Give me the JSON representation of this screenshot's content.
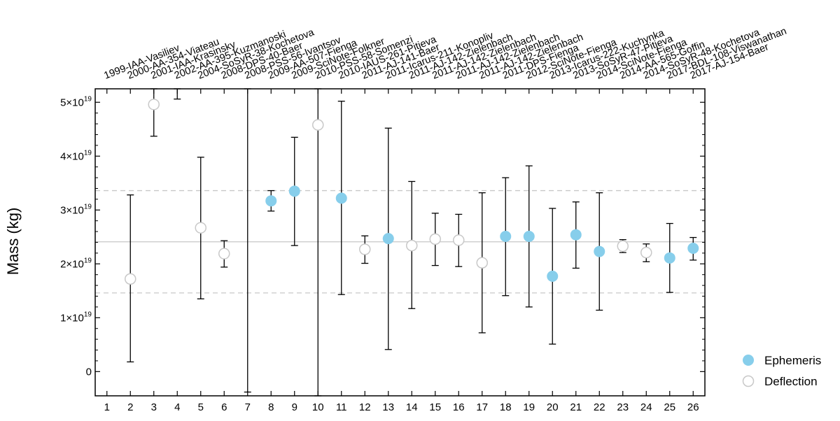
{
  "chart_data": {
    "type": "scatter",
    "ylabel": "Mass (kg)",
    "x": [
      1,
      2,
      3,
      4,
      5,
      6,
      7,
      8,
      9,
      10,
      11,
      12,
      13,
      14,
      15,
      16,
      17,
      18,
      19,
      20,
      21,
      22,
      23,
      24,
      25,
      26
    ],
    "xlim": [
      0.5,
      26.5
    ],
    "ylim": [
      -0.45,
      5.25
    ],
    "y_scale_unit": "1e19",
    "y_ticks": [
      {
        "value": 0,
        "mantissa": "0",
        "exp": ""
      },
      {
        "value": 1,
        "mantissa": "1×10",
        "exp": "19"
      },
      {
        "value": 2,
        "mantissa": "2×10",
        "exp": "19"
      },
      {
        "value": 3,
        "mantissa": "3×10",
        "exp": "19"
      },
      {
        "value": 4,
        "mantissa": "4×10",
        "exp": "19"
      },
      {
        "value": 5,
        "mantissa": "5×10",
        "exp": "19"
      }
    ],
    "x_tick_labels": [
      "1",
      "2",
      "3",
      "4",
      "5",
      "6",
      "7",
      "8",
      "9",
      "10",
      "11",
      "12",
      "13",
      "14",
      "15",
      "16",
      "17",
      "18",
      "19",
      "20",
      "21",
      "22",
      "23",
      "24",
      "25",
      "26"
    ],
    "top_labels": [
      "1999-IAA-Vasiliev",
      "2000-AA-354-Viateau",
      "2001-IAA-Krasinsky",
      "2002-AA-395-Kuzmanoski",
      "2004-SoSyR-38-Kochetova",
      "2008-DPS-40-Baer",
      "2008-PSS-56-Ivantsov",
      "2009-AA-507-Fienga",
      "2009-SciNote-Folkner",
      "2010-PSS-58-Somenzi",
      "2010-IAUS-261-Pitjeva",
      "2011-AJ-141-Baer",
      "2011-Icarus-211-Konopliv",
      "2011-AJ-142-Zielenbach",
      "2011-AJ-142-Zielenbach",
      "2011-AJ-142-Zielenbach",
      "2011-AJ-142-Zielenbach",
      "2011-DPS-Fienga",
      "2012-SciNote-Fienga",
      "2013-Icarus-222-Kuchynka",
      "2013-SoSyR-47-Pitjeva",
      "2014-SciNote-Fienga",
      "2014-AA-565-Goffin",
      "2014-SoSyR-48-Kochetova",
      "2017-BDL-108-Viswanathan",
      "2017-AJ-154-Baer"
    ],
    "series": [
      {
        "name": "Ephemeris",
        "color": "#87ceeb",
        "marker": "filled-circle",
        "points": [
          {
            "x": 8,
            "y": 3.17,
            "lo": 2.98,
            "hi": 3.36
          },
          {
            "x": 9,
            "y": 3.35,
            "lo": 2.34,
            "hi": 4.35
          },
          {
            "x": 11,
            "y": 3.22,
            "lo": 1.43,
            "hi": 5.02
          },
          {
            "x": 13,
            "y": 2.47,
            "lo": 0.41,
            "hi": 4.52
          },
          {
            "x": 18,
            "y": 2.51,
            "lo": 1.41,
            "hi": 3.6
          },
          {
            "x": 19,
            "y": 2.51,
            "lo": 1.2,
            "hi": 3.82
          },
          {
            "x": 20,
            "y": 1.77,
            "lo": 0.51,
            "hi": 3.03
          },
          {
            "x": 21,
            "y": 2.54,
            "lo": 1.92,
            "hi": 3.15
          },
          {
            "x": 22,
            "y": 2.23,
            "lo": 1.14,
            "hi": 3.32
          },
          {
            "x": 25,
            "y": 2.11,
            "lo": 1.47,
            "hi": 2.75
          },
          {
            "x": 26,
            "y": 2.29,
            "lo": 2.07,
            "hi": 2.49
          }
        ]
      },
      {
        "name": "Deflection",
        "color": "#c8c8c8",
        "marker": "open-circle",
        "points": [
          {
            "x": 2,
            "y": 1.72,
            "lo": 0.18,
            "hi": 3.28
          },
          {
            "x": 3,
            "y": 4.96,
            "lo": 4.37,
            "hi": 5.25
          },
          {
            "x": 4,
            "y": null,
            "lo": 5.06,
            "hi": 5.25
          },
          {
            "x": 5,
            "y": 2.67,
            "lo": 1.35,
            "hi": 3.98
          },
          {
            "x": 6,
            "y": 2.19,
            "lo": 1.94,
            "hi": 2.43
          },
          {
            "x": 7,
            "y": null,
            "lo": -0.38,
            "hi": 5.25
          },
          {
            "x": 10,
            "y": 4.58,
            "lo": -0.45,
            "hi": 5.25
          },
          {
            "x": 12,
            "y": 2.27,
            "lo": 2.01,
            "hi": 2.52
          },
          {
            "x": 14,
            "y": 2.34,
            "lo": 1.17,
            "hi": 3.53
          },
          {
            "x": 15,
            "y": 2.46,
            "lo": 1.97,
            "hi": 2.94
          },
          {
            "x": 16,
            "y": 2.44,
            "lo": 1.95,
            "hi": 2.92
          },
          {
            "x": 17,
            "y": 2.02,
            "lo": 0.72,
            "hi": 3.32
          },
          {
            "x": 23,
            "y": 2.33,
            "lo": 2.21,
            "hi": 2.45
          },
          {
            "x": 24,
            "y": 2.21,
            "lo": 2.04,
            "hi": 2.37
          }
        ]
      }
    ],
    "reference_lines": [
      {
        "y": 2.41,
        "style": "solid",
        "color": "#c8c8c8"
      },
      {
        "y": 3.36,
        "style": "dashed",
        "color": "#c8c8c8"
      },
      {
        "y": 1.46,
        "style": "dashed",
        "color": "#c8c8c8"
      }
    ],
    "legend_position": "bottom-right",
    "grid": false
  }
}
